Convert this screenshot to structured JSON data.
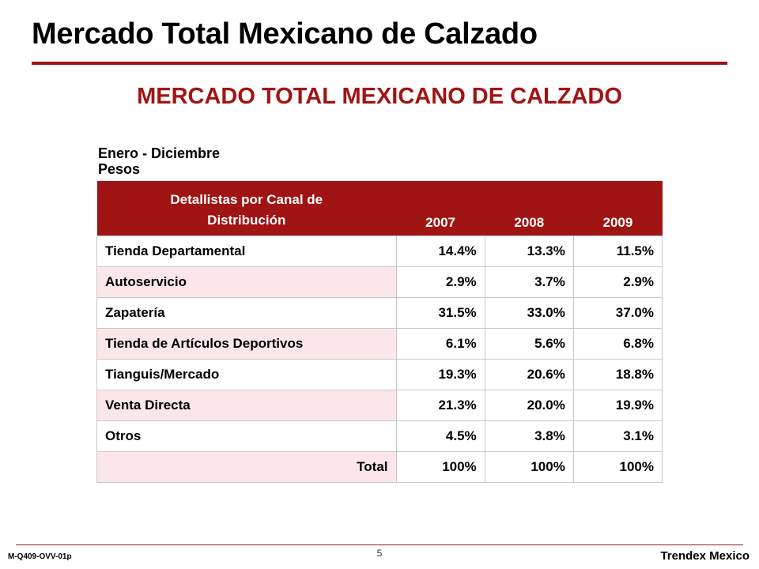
{
  "slide": {
    "title": "Mercado Total Mexicano de Calzado",
    "subtitle": "MERCADO TOTAL MEXICANO DE CALZADO",
    "period_line1": "Enero - Diciembre",
    "period_line2": "Pesos"
  },
  "table": {
    "header": {
      "label_line1": "Detallistas por Canal de",
      "label_line2": "Distribución",
      "years": [
        "2007",
        "2008",
        "2009"
      ]
    },
    "rows": [
      {
        "label": "Tienda Departamental",
        "values": [
          "14.4%",
          "13.3%",
          "11.5%"
        ]
      },
      {
        "label": "Autoservicio",
        "values": [
          "2.9%",
          "3.7%",
          "2.9%"
        ]
      },
      {
        "label": "Zapatería",
        "values": [
          "31.5%",
          "33.0%",
          "37.0%"
        ]
      },
      {
        "label": "Tienda de Artículos Deportivos",
        "values": [
          "6.1%",
          "5.6%",
          "6.8%"
        ]
      },
      {
        "label": "Tianguis/Mercado",
        "values": [
          "19.3%",
          "20.6%",
          "18.8%"
        ]
      },
      {
        "label": "Venta Directa",
        "values": [
          "21.3%",
          "20.0%",
          "19.9%"
        ]
      },
      {
        "label": "Otros",
        "values": [
          "4.5%",
          "3.8%",
          "3.1%"
        ]
      }
    ],
    "total": {
      "label": "Total",
      "values": [
        "100%",
        "100%",
        "100%"
      ]
    }
  },
  "footer": {
    "doc_code": "M-Q409-OVV-01p",
    "page_number": "5",
    "brand": "Trendex Mexico"
  },
  "colors": {
    "accent": "#a11414",
    "row_tint": "#fbe7ea"
  }
}
